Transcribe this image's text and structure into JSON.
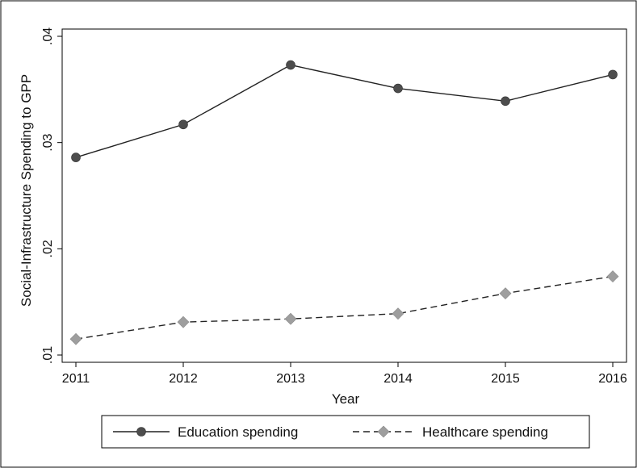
{
  "chart_data": {
    "type": "line",
    "categories": [
      "2011",
      "2012",
      "2013",
      "2014",
      "2015",
      "2016"
    ],
    "x": [
      2011,
      2012,
      2013,
      2014,
      2015,
      2016
    ],
    "series": [
      {
        "name": "Education spending",
        "values": [
          0.0286,
          0.0317,
          0.0373,
          0.0351,
          0.0339,
          0.0364
        ],
        "color": "#4d4d4d",
        "line_style": "solid",
        "marker": "circle"
      },
      {
        "name": "Healthcare spending",
        "values": [
          0.0115,
          0.0131,
          0.0134,
          0.0139,
          0.0158,
          0.0174
        ],
        "color": "#9e9e9e",
        "line_style": "dashed",
        "marker": "diamond"
      }
    ],
    "y_ticks": [
      0.01,
      0.02,
      0.03,
      0.04
    ],
    "y_tick_labels": [
      ".01",
      ".02",
      ".03",
      ".04"
    ],
    "title": "",
    "xlabel": "Year",
    "ylabel": "Social-Infrastructure Spending to GPP",
    "xlim": [
      2011,
      2016
    ],
    "ylim": [
      0.01,
      0.04
    ],
    "grid": false,
    "legend_position": "bottom"
  }
}
